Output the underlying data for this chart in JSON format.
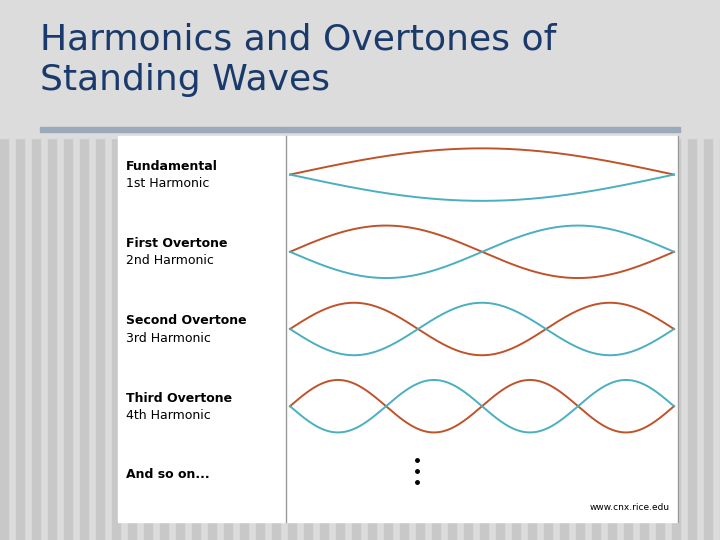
{
  "title": "Harmonics and Overtones of\nStanding Waves",
  "title_color": "#1a3a6b",
  "title_fontsize": 26,
  "bg_color": "#dcdcdc",
  "stripe_color": "#c8c8c8",
  "divider_color": "#9aaabb",
  "content_bg": "#ffffff",
  "wave_color_orange": "#c0522a",
  "wave_color_cyan": "#4aafc0",
  "harmonics": [
    {
      "label1": "Fundamental",
      "label2": "1st Harmonic",
      "n": 1
    },
    {
      "label1": "First Overtone",
      "label2": "2nd Harmonic",
      "n": 2
    },
    {
      "label1": "Second Overtone",
      "label2": "3rd Harmonic",
      "n": 3
    },
    {
      "label1": "Third Overtone",
      "label2": "4th Harmonic",
      "n": 4
    }
  ],
  "and_so_on": "And so on...",
  "url": "www.cnx.rice.edu",
  "label_fontsize": 9,
  "label_bold_fontsize": 9,
  "url_fontsize": 6.5,
  "wave_lw": 1.4
}
